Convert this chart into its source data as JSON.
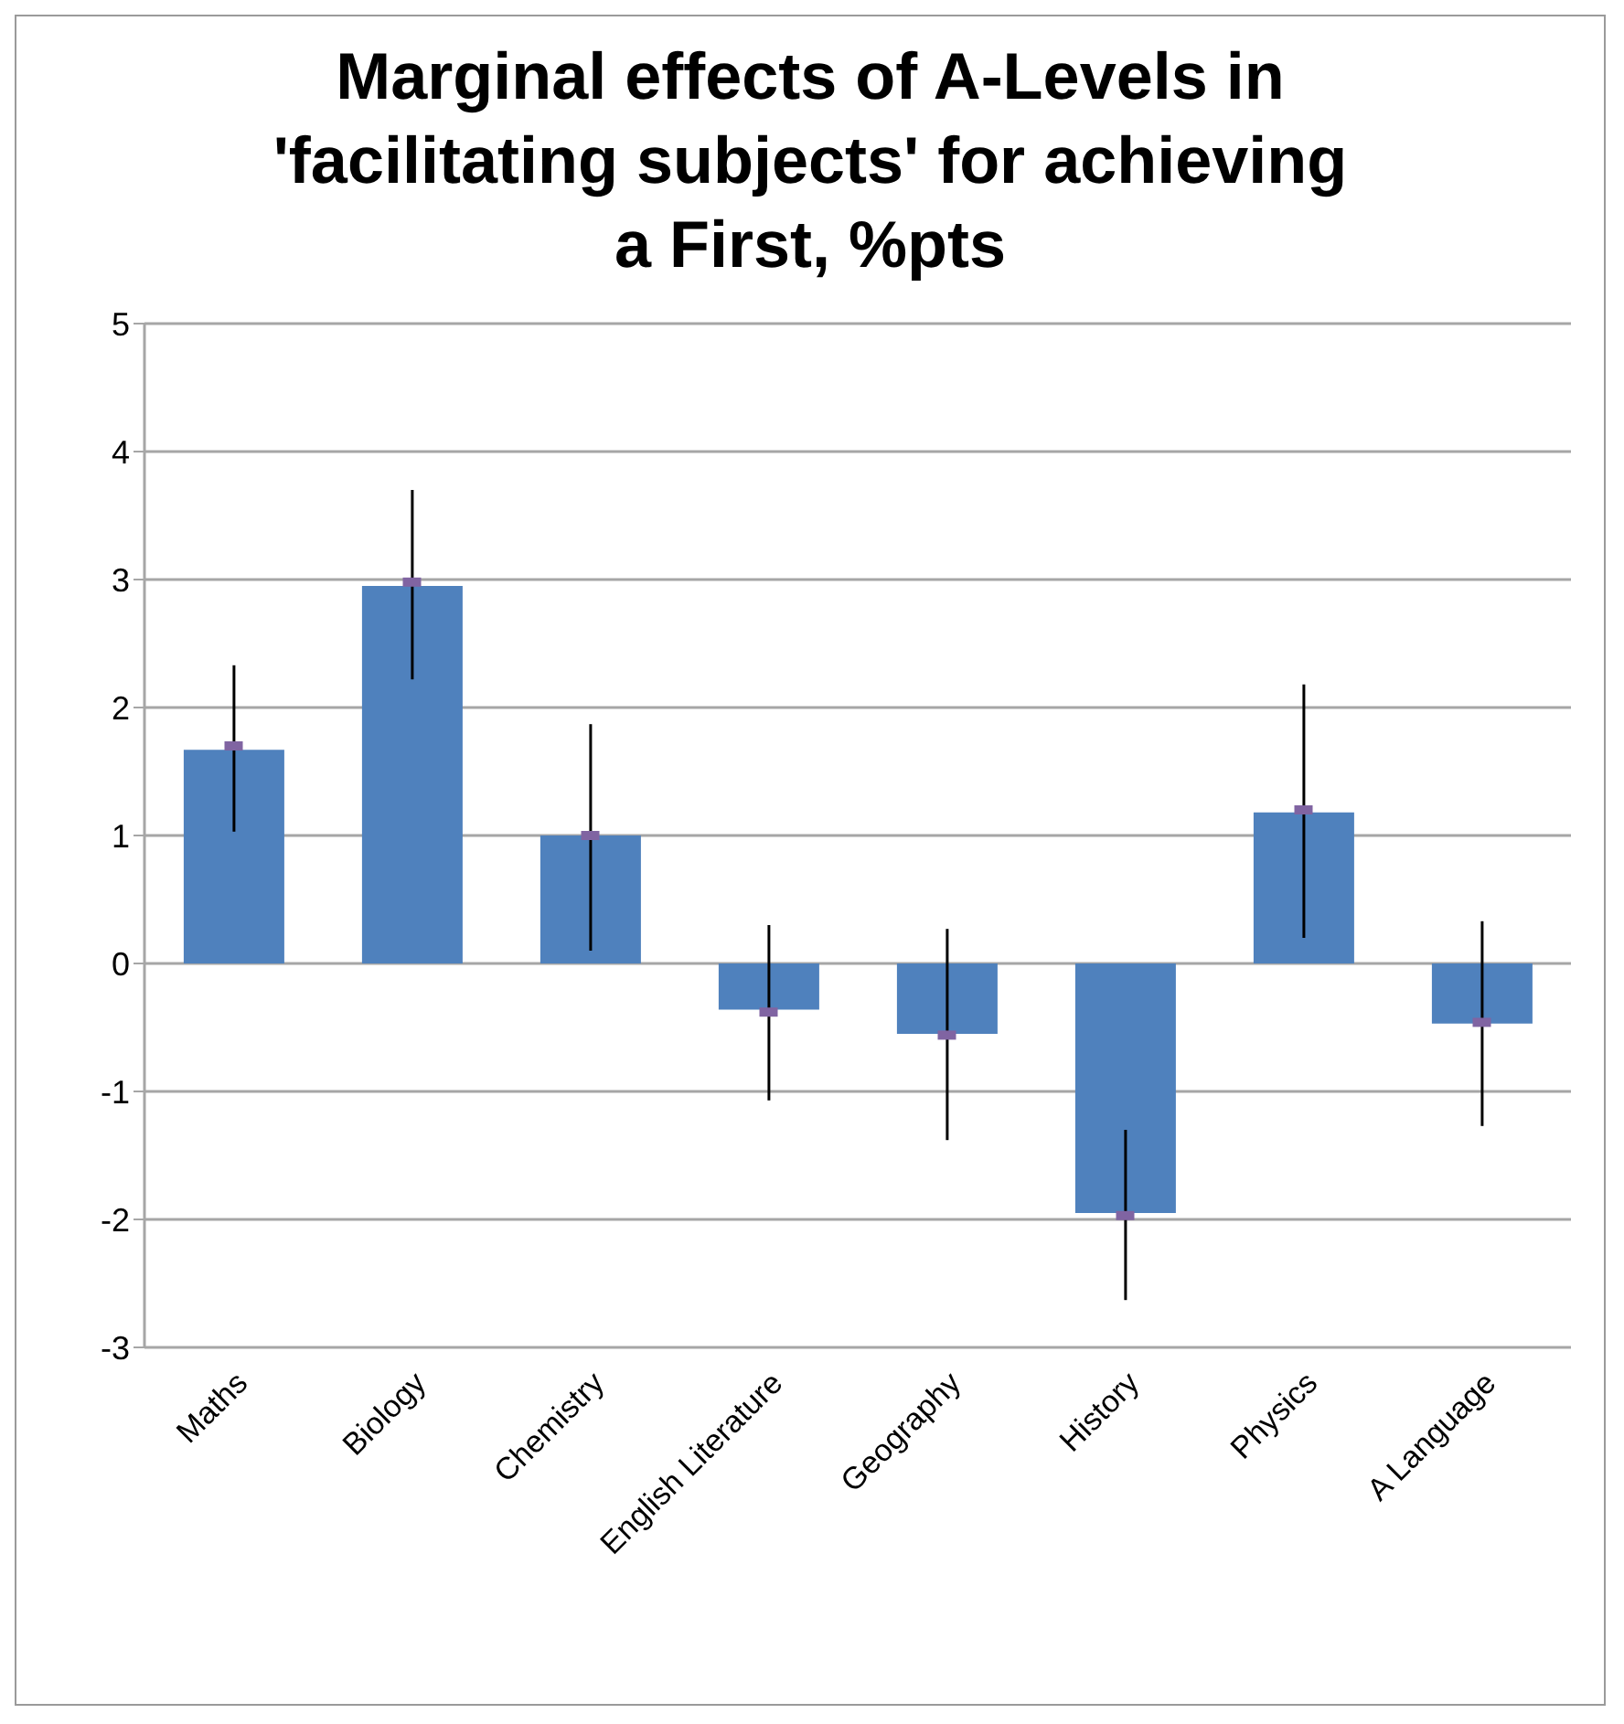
{
  "chart_data": {
    "type": "bar",
    "title": "Marginal effects of A-Levels in 'facilitating subjects' for achieving a First, %pts",
    "categories": [
      "Maths",
      "Biology",
      "Chemistry",
      "English Literature",
      "Geography",
      "History",
      "Physics",
      "A Language"
    ],
    "series": [
      {
        "color": "#4f81bd",
        "values": [
          1.67,
          2.95,
          1.0,
          -0.36,
          -0.55,
          -1.95,
          1.18,
          -0.47
        ],
        "errors": [
          [
            1.03,
            2.33
          ],
          [
            2.22,
            3.7
          ],
          [
            0.1,
            1.87
          ],
          [
            -1.07,
            0.3
          ],
          [
            -1.38,
            0.27
          ],
          [
            -2.63,
            -1.3
          ],
          [
            0.2,
            2.18
          ],
          [
            -1.27,
            0.33
          ]
        ]
      },
      {
        "type": "scatter",
        "color": "#8064a2",
        "marker": "square",
        "x": [
          "Maths",
          "Biology",
          "Chemistry",
          "English Literature",
          "Geography",
          "History",
          "Physics",
          "A Language"
        ],
        "values": [
          1.7,
          2.98,
          1.0,
          -0.38,
          -0.56,
          -1.97,
          1.2,
          -0.46
        ]
      }
    ],
    "ylim": [
      -3,
      5
    ],
    "yticks": [
      -3,
      -2,
      -1,
      0,
      1,
      2,
      3,
      4,
      5
    ],
    "grid": "y",
    "legend": false
  }
}
